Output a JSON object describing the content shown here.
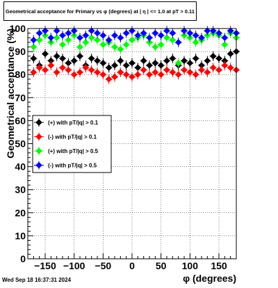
{
  "footer": "Wed Sep 18 16:37:31 2024",
  "chart_data": {
    "type": "scatter",
    "title": "Geometrical acceptance for Primary vs φ (degrees) at | η | <= 1.0 at pT > 0.11",
    "xlabel": "φ (degrees)",
    "ylabel": "Geometrical acceptance (%)",
    "xlim": [
      -180,
      180
    ],
    "ylim": [
      0,
      100
    ],
    "xticks": [
      -150,
      -100,
      -50,
      0,
      50,
      100,
      150
    ],
    "xtick_labels": [
      "−150",
      "−100",
      "−50",
      "0",
      "50",
      "100",
      "150"
    ],
    "yticks": [
      0,
      10,
      20,
      30,
      40,
      50,
      60,
      70,
      80,
      90,
      100
    ],
    "grid": true,
    "legend_position": "middle-left",
    "x": [
      -170,
      -160,
      -150,
      -140,
      -130,
      -120,
      -110,
      -100,
      -90,
      -80,
      -70,
      -60,
      -50,
      -40,
      -30,
      -20,
      -10,
      0,
      10,
      20,
      30,
      40,
      50,
      60,
      70,
      80,
      90,
      100,
      110,
      120,
      130,
      140,
      150,
      160,
      170,
      180
    ],
    "series": [
      {
        "name": "(+) with pT/|q| > 0.1",
        "color": "#000000",
        "values": [
          87,
          84,
          89,
          86,
          88,
          87,
          85,
          86,
          88,
          84,
          87,
          86,
          85,
          83,
          84,
          86,
          84,
          85,
          83,
          86,
          84,
          85,
          84,
          86,
          87,
          84,
          86,
          85,
          87,
          84,
          86,
          88,
          87,
          86,
          89,
          90
        ]
      },
      {
        "name": "(-) with pT/|q| > 0.1",
        "color": "#ff0000",
        "values": [
          81,
          83,
          82,
          84,
          81,
          83,
          82,
          80,
          81,
          83,
          82,
          81,
          80,
          78,
          79,
          81,
          80,
          79,
          80,
          82,
          80,
          81,
          80,
          82,
          81,
          80,
          82,
          81,
          80,
          82,
          81,
          83,
          82,
          84,
          83,
          82
        ]
      },
      {
        "name": "(+) with pT/|q| > 0.5",
        "color": "#00ff00",
        "values": [
          92,
          95,
          97,
          94,
          96,
          93,
          95,
          97,
          92,
          94,
          96,
          95,
          93,
          94,
          92,
          91,
          93,
          95,
          96,
          97,
          94,
          92,
          93,
          96,
          95,
          85,
          97,
          96,
          94,
          95,
          97,
          98,
          97,
          93,
          98,
          96
        ]
      },
      {
        "name": "(-) with pT/|q| > 0.5",
        "color": "#0000ff",
        "values": [
          95,
          98,
          99,
          96,
          99,
          97,
          98,
          99,
          96,
          97,
          99,
          98,
          97,
          95,
          97,
          96,
          98,
          99,
          97,
          98,
          96,
          98,
          97,
          99,
          98,
          94,
          99,
          98,
          97,
          96,
          99,
          99,
          98,
          96,
          99,
          98
        ]
      }
    ]
  }
}
